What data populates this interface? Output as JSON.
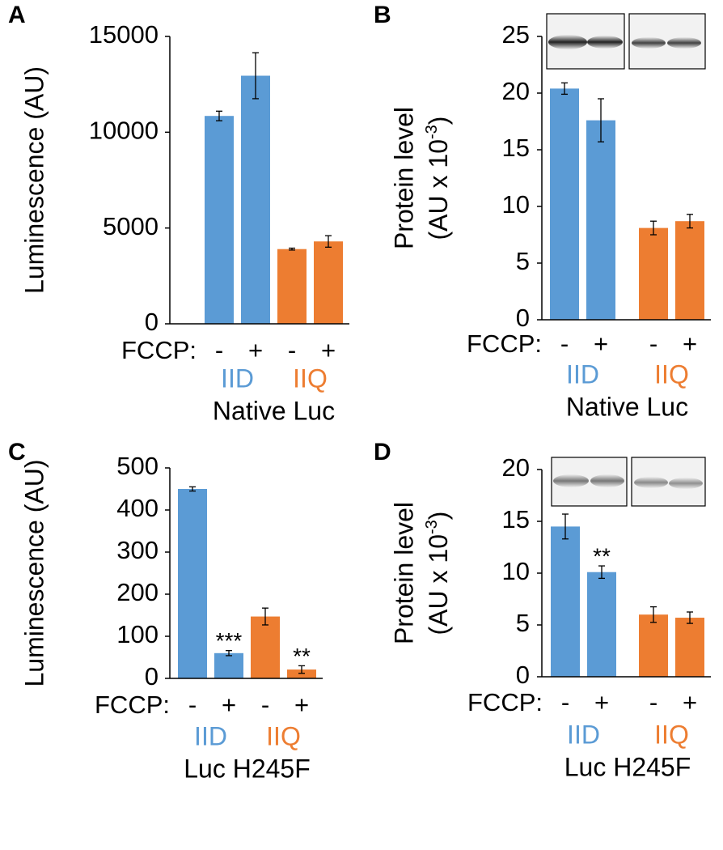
{
  "chart_data": [
    {
      "type": "bar",
      "label": "A",
      "ylabel": "Luminescence (AU)",
      "ylim": [
        0,
        15000
      ],
      "yticks": [
        0,
        5000,
        10000,
        15000
      ],
      "x_prefix": "FCCP:",
      "categories": [
        "-",
        "+"
      ],
      "xlabel": "Native Luc",
      "series": [
        {
          "name": "IID",
          "color": "#5b9bd5",
          "values": [
            10850,
            12950
          ],
          "errors": [
            250,
            1200
          ],
          "annotations": [
            null,
            null
          ]
        },
        {
          "name": "IIQ",
          "color": "#ed7d31",
          "values": [
            3900,
            4300
          ],
          "errors": [
            50,
            300
          ],
          "annotations": [
            null,
            null
          ]
        }
      ]
    },
    {
      "type": "bar",
      "label": "B",
      "ylabel": "Protein level",
      "ylabel2": {
        "text": "(AU x 10",
        "sup": "-3",
        "end": ")"
      },
      "ylim": [
        0,
        25
      ],
      "yticks": [
        0,
        5,
        10,
        15,
        20,
        25
      ],
      "x_prefix": "FCCP:",
      "categories": [
        "-",
        "+"
      ],
      "xlabel": "Native Luc",
      "series": [
        {
          "name": "IID",
          "color": "#5b9bd5",
          "values": [
            20.4,
            17.6
          ],
          "errors": [
            0.5,
            1.9
          ],
          "annotations": [
            null,
            null
          ]
        },
        {
          "name": "IIQ",
          "color": "#ed7d31",
          "values": [
            8.1,
            8.7
          ],
          "errors": [
            0.6,
            0.6
          ],
          "annotations": [
            null,
            null
          ]
        }
      ]
    },
    {
      "type": "bar",
      "label": "C",
      "ylabel": "Luminescence (AU)",
      "ylim": [
        0,
        500
      ],
      "yticks": [
        0,
        100,
        200,
        300,
        400,
        500
      ],
      "x_prefix": "FCCP:",
      "categories": [
        "-",
        "+"
      ],
      "xlabel": "Luc H245F",
      "series": [
        {
          "name": "IID",
          "color": "#5b9bd5",
          "values": [
            450,
            60
          ],
          "errors": [
            5,
            6
          ],
          "annotations": [
            null,
            "***"
          ]
        },
        {
          "name": "IIQ",
          "color": "#ed7d31",
          "values": [
            147,
            21
          ],
          "errors": [
            20,
            9
          ],
          "annotations": [
            null,
            "**"
          ]
        }
      ]
    },
    {
      "type": "bar",
      "label": "D",
      "ylabel": "Protein level",
      "ylabel2": {
        "text": "(AU x 10",
        "sup": "-3",
        "end": ")"
      },
      "ylim": [
        0,
        20
      ],
      "yticks": [
        0,
        5,
        10,
        15,
        20
      ],
      "x_prefix": "FCCP:",
      "categories": [
        "-",
        "+"
      ],
      "xlabel": "Luc H245F",
      "series": [
        {
          "name": "IID",
          "color": "#5b9bd5",
          "values": [
            14.5,
            10.1
          ],
          "errors": [
            1.2,
            0.6
          ],
          "annotations": [
            null,
            "**"
          ]
        },
        {
          "name": "IIQ",
          "color": "#ed7d31",
          "values": [
            6.0,
            5.7
          ],
          "errors": [
            0.75,
            0.55
          ],
          "annotations": [
            null,
            null
          ]
        }
      ]
    }
  ]
}
